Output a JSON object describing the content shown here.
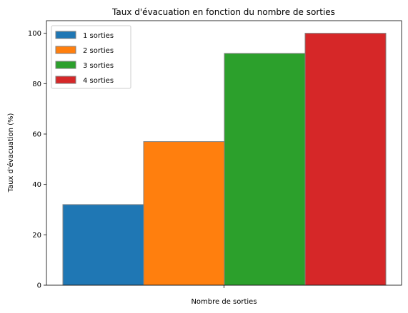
{
  "chart_data": {
    "type": "bar",
    "title": "Taux d'évacuation en fonction du nombre de sorties",
    "xlabel": "Nombre de sorties",
    "ylabel": "Taux d'évacuation (%)",
    "ylim": [
      0,
      105
    ],
    "yticks": [
      "0",
      "20",
      "40",
      "60",
      "80",
      "100"
    ],
    "grid": false,
    "legend_position": "top-left",
    "series": [
      {
        "name": "1 sorties",
        "values": [
          32
        ],
        "color": "#1f77b4"
      },
      {
        "name": "2 sorties",
        "values": [
          57
        ],
        "color": "#ff7f0e"
      },
      {
        "name": "3 sorties",
        "values": [
          92
        ],
        "color": "#2ca02c"
      },
      {
        "name": "4 sorties",
        "values": [
          100
        ],
        "color": "#d62728"
      }
    ],
    "bar_edge_color": "#808080"
  }
}
